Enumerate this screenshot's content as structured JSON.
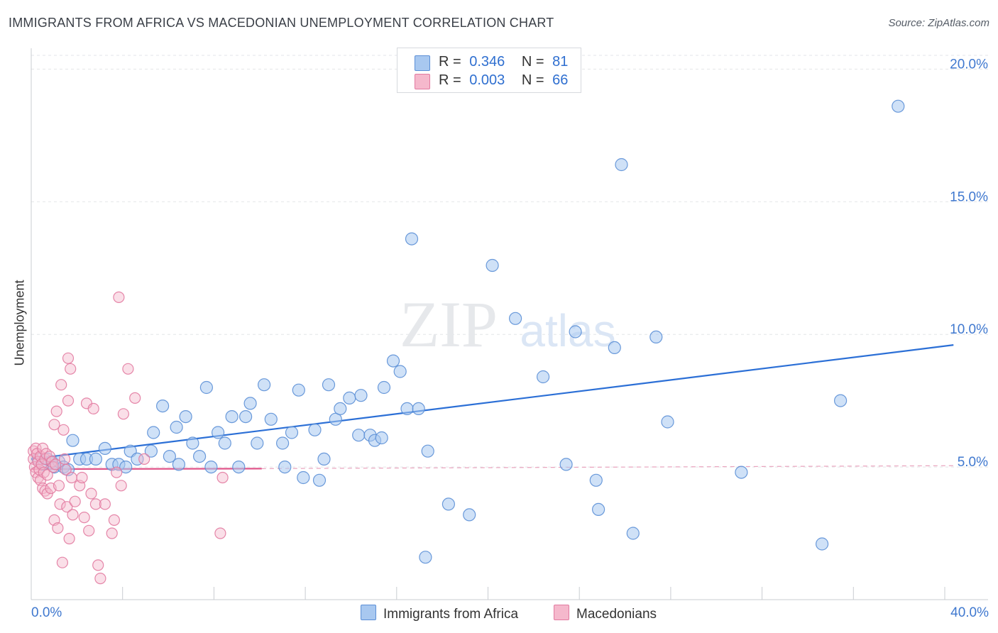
{
  "title": "IMMIGRANTS FROM AFRICA VS MACEDONIAN UNEMPLOYMENT CORRELATION CHART",
  "source": "Source: ZipAtlas.com",
  "watermark": {
    "zip": "ZIP",
    "atlas": "atlas"
  },
  "legend": {
    "r_label": "R =",
    "n_label": "N =",
    "rows": [
      {
        "r": "0.346",
        "n": "81",
        "color": "#a8c8f0",
        "border": "#5b8fd6"
      },
      {
        "r": "0.003",
        "n": "66",
        "color": "#f5b8cc",
        "border": "#e27aa0"
      }
    ]
  },
  "bottom_legend": [
    "Immigrants from Africa",
    "Macedonians"
  ],
  "chart_data": {
    "type": "scatter",
    "title": "IMMIGRANTS FROM AFRICA VS MACEDONIAN UNEMPLOYMENT CORRELATION CHART",
    "xlabel": "",
    "ylabel": "Unemployment",
    "xlim": [
      0,
      41.5
    ],
    "ylim": [
      0,
      21
    ],
    "x_tick_labels": [
      "0.0%",
      "40.0%"
    ],
    "y_ticks": [
      5,
      10,
      15,
      20
    ],
    "y_tick_labels": [
      "5.0%",
      "10.0%",
      "15.0%",
      "20.0%"
    ],
    "grid": "horizontal dashed",
    "series": [
      {
        "name": "Immigrants from Africa",
        "color": "#5b8fd6",
        "fill": "#a8c8f0",
        "trend": {
          "x": [
            0,
            40
          ],
          "y": [
            5.3,
            9.6
          ]
        },
        "points": [
          [
            0.3,
            5.3
          ],
          [
            0.5,
            5.1
          ],
          [
            0.7,
            5.3
          ],
          [
            0.9,
            5.2
          ],
          [
            1.0,
            5.0
          ],
          [
            1.2,
            5.2
          ],
          [
            1.4,
            5.0
          ],
          [
            1.6,
            4.9
          ],
          [
            1.8,
            6.0
          ],
          [
            2.1,
            5.3
          ],
          [
            2.4,
            5.3
          ],
          [
            2.8,
            5.3
          ],
          [
            3.2,
            5.7
          ],
          [
            3.5,
            5.1
          ],
          [
            3.8,
            5.1
          ],
          [
            4.1,
            5.0
          ],
          [
            4.3,
            5.6
          ],
          [
            4.6,
            5.3
          ],
          [
            5.2,
            5.6
          ],
          [
            5.3,
            6.3
          ],
          [
            5.7,
            7.3
          ],
          [
            6.0,
            5.4
          ],
          [
            6.3,
            6.5
          ],
          [
            6.4,
            5.1
          ],
          [
            6.7,
            6.9
          ],
          [
            7.0,
            5.9
          ],
          [
            7.3,
            5.4
          ],
          [
            7.6,
            8.0
          ],
          [
            7.8,
            5.0
          ],
          [
            8.1,
            6.3
          ],
          [
            8.4,
            5.9
          ],
          [
            8.7,
            6.9
          ],
          [
            9.0,
            5.0
          ],
          [
            9.3,
            6.9
          ],
          [
            9.5,
            7.4
          ],
          [
            9.8,
            5.9
          ],
          [
            10.1,
            8.1
          ],
          [
            10.4,
            6.8
          ],
          [
            10.9,
            5.9
          ],
          [
            11.0,
            5.0
          ],
          [
            11.3,
            6.3
          ],
          [
            11.6,
            7.9
          ],
          [
            11.8,
            4.6
          ],
          [
            12.3,
            6.4
          ],
          [
            12.5,
            4.5
          ],
          [
            12.7,
            5.3
          ],
          [
            12.9,
            8.1
          ],
          [
            13.2,
            6.8
          ],
          [
            13.4,
            7.2
          ],
          [
            13.8,
            7.6
          ],
          [
            14.2,
            6.2
          ],
          [
            14.3,
            7.7
          ],
          [
            14.7,
            6.2
          ],
          [
            14.9,
            6.0
          ],
          [
            15.2,
            6.1
          ],
          [
            15.3,
            8.0
          ],
          [
            15.7,
            9.0
          ],
          [
            16.0,
            8.6
          ],
          [
            16.3,
            7.2
          ],
          [
            16.5,
            13.6
          ],
          [
            16.8,
            7.2
          ],
          [
            17.1,
            1.6
          ],
          [
            17.2,
            5.6
          ],
          [
            18.1,
            3.6
          ],
          [
            19.0,
            3.2
          ],
          [
            20.0,
            12.6
          ],
          [
            21.0,
            10.6
          ],
          [
            22.2,
            8.4
          ],
          [
            23.2,
            5.1
          ],
          [
            23.6,
            10.1
          ],
          [
            24.5,
            4.5
          ],
          [
            24.6,
            3.4
          ],
          [
            25.3,
            9.5
          ],
          [
            25.6,
            16.4
          ],
          [
            26.1,
            2.5
          ],
          [
            27.1,
            9.9
          ],
          [
            27.6,
            6.7
          ],
          [
            30.8,
            4.8
          ],
          [
            34.3,
            2.1
          ],
          [
            35.1,
            7.5
          ],
          [
            37.6,
            18.6
          ]
        ]
      },
      {
        "name": "Macedonians",
        "color": "#e27aa0",
        "fill": "#f5b8cc",
        "trend": {
          "x": [
            0,
            10
          ],
          "y": [
            4.92,
            4.94
          ]
        },
        "trend_dashed": {
          "x": [
            10,
            40
          ],
          "y": [
            4.94,
            5.05
          ]
        },
        "points": [
          [
            0.1,
            5.6
          ],
          [
            0.1,
            5.3
          ],
          [
            0.15,
            5.0
          ],
          [
            0.2,
            5.7
          ],
          [
            0.2,
            4.8
          ],
          [
            0.25,
            5.5
          ],
          [
            0.3,
            4.6
          ],
          [
            0.3,
            5.2
          ],
          [
            0.35,
            4.9
          ],
          [
            0.4,
            5.4
          ],
          [
            0.4,
            4.5
          ],
          [
            0.45,
            5.1
          ],
          [
            0.5,
            4.2
          ],
          [
            0.5,
            5.7
          ],
          [
            0.55,
            4.8
          ],
          [
            0.6,
            5.3
          ],
          [
            0.6,
            4.1
          ],
          [
            0.65,
            5.5
          ],
          [
            0.7,
            4.0
          ],
          [
            0.7,
            4.7
          ],
          [
            0.8,
            5.4
          ],
          [
            0.85,
            4.2
          ],
          [
            0.9,
            5.2
          ],
          [
            0.95,
            5.0
          ],
          [
            1.0,
            3.0
          ],
          [
            1.0,
            6.6
          ],
          [
            1.05,
            5.1
          ],
          [
            1.1,
            7.1
          ],
          [
            1.15,
            2.7
          ],
          [
            1.2,
            4.3
          ],
          [
            1.25,
            3.6
          ],
          [
            1.3,
            8.1
          ],
          [
            1.35,
            1.4
          ],
          [
            1.4,
            6.4
          ],
          [
            1.45,
            5.3
          ],
          [
            1.5,
            4.9
          ],
          [
            1.55,
            3.5
          ],
          [
            1.6,
            9.1
          ],
          [
            1.6,
            7.5
          ],
          [
            1.65,
            2.3
          ],
          [
            1.7,
            8.7
          ],
          [
            1.75,
            4.6
          ],
          [
            1.8,
            3.2
          ],
          [
            1.9,
            3.7
          ],
          [
            2.1,
            4.3
          ],
          [
            2.2,
            4.6
          ],
          [
            2.3,
            3.1
          ],
          [
            2.4,
            7.4
          ],
          [
            2.5,
            2.6
          ],
          [
            2.6,
            4.0
          ],
          [
            2.7,
            7.2
          ],
          [
            2.8,
            3.6
          ],
          [
            2.9,
            1.3
          ],
          [
            3.0,
            0.8
          ],
          [
            3.2,
            3.6
          ],
          [
            3.5,
            2.5
          ],
          [
            3.6,
            3.0
          ],
          [
            3.7,
            4.8
          ],
          [
            3.8,
            11.4
          ],
          [
            3.9,
            4.3
          ],
          [
            4.0,
            7.0
          ],
          [
            4.2,
            8.7
          ],
          [
            4.5,
            7.6
          ],
          [
            4.9,
            5.3
          ],
          [
            8.2,
            2.5
          ],
          [
            8.3,
            4.6
          ]
        ]
      }
    ]
  }
}
